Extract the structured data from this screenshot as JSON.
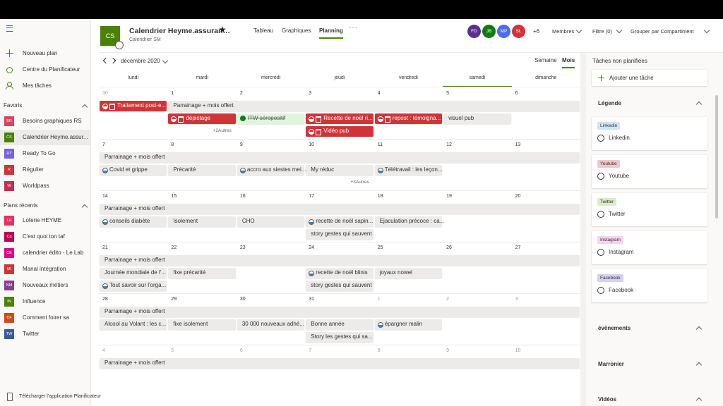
{
  "sidebar": {
    "new_plan": "Nouveau plan",
    "hub": "Centre du Planificateur",
    "my_tasks": "Mes tâches",
    "favorites_title": "Favoris",
    "favorites": [
      {
        "initials": "BR",
        "name": "Besoins graphiques RS",
        "color": "#e0405e"
      },
      {
        "initials": "CS",
        "name": "Calendrier Heyme.assur...",
        "color": "#498205",
        "selected": true
      },
      {
        "initials": "RT",
        "name": "Ready To Go",
        "color": "#7a63e0"
      },
      {
        "initials": "R",
        "name": "Régulier",
        "color": "#d13438"
      },
      {
        "initials": "W",
        "name": "Worldpass",
        "color": "#c4314b"
      }
    ],
    "recent_title": "Plans récents",
    "recent": [
      {
        "initials": "LH",
        "name": "Loterie HEYME",
        "color": "#e3325f"
      },
      {
        "initials": "Cq",
        "name": "C'est quoi ton taf",
        "color": "#c30052"
      },
      {
        "initials": "CÉ",
        "name": "calendrier édito - Le Lab",
        "color": "#e3008c"
      },
      {
        "initials": "MI",
        "name": "Manal intégration",
        "color": "#d13438"
      },
      {
        "initials": "NM",
        "name": "Nouveaux métiers",
        "color": "#8e3b8f"
      },
      {
        "initials": "IN",
        "name": "Influence",
        "color": "#498205"
      },
      {
        "initials": "CF",
        "name": "Comment foirer sa",
        "color": "#ca5010"
      },
      {
        "initials": "TW",
        "name": "Twitter",
        "color": "#3b5b9b"
      }
    ],
    "download": "Télécharger l'application Planificateur"
  },
  "header": {
    "initials": "CS",
    "color": "#498205",
    "title": "Calendrier Heyme.assuran…",
    "subtitle": "Calendrier SM",
    "tabs": [
      "Tableau",
      "Graphiques",
      "Planning"
    ],
    "active_tab": 2,
    "members": [
      {
        "initials": "FD",
        "color": "#5c2e91"
      },
      {
        "initials": "JB",
        "color": "#107c10"
      },
      {
        "initials": "MP",
        "color": "#4f6bed"
      },
      {
        "initials": "SL",
        "color": "#d13438"
      }
    ],
    "more_members": "+6",
    "members_label": "Membres",
    "filter": "Filtre (0)",
    "group": "Grouper par Compartiment"
  },
  "calendar": {
    "month": "décembre 2020",
    "views": [
      "Semaine",
      "Mois"
    ],
    "active_view": 1,
    "weekdays": [
      "lundi",
      "mardi",
      "mercredi",
      "jeudi",
      "vendredi",
      "samedi",
      "dimanche"
    ],
    "today": 5,
    "weeks": [
      {
        "days": [
          {
            "n": "30",
            "other": true
          },
          {
            "n": "1"
          },
          {
            "n": "2"
          },
          {
            "n": "3"
          },
          {
            "n": "4"
          },
          {
            "n": "5"
          },
          {
            "n": "6"
          }
        ],
        "lanes": [
          [
            {
              "label": "Traitement post-e...",
              "kind": "red"
            },
            {
              "label": "Parrainage + mois offert",
              "kind": "banner"
            },
            null,
            null,
            null,
            null,
            null
          ],
          [
            null,
            {
              "label": "dépistage",
              "kind": "red"
            },
            {
              "label": "ITW séropositif",
              "kind": "done"
            },
            {
              "label": "Recette de noël ri...",
              "kind": "red"
            },
            {
              "label": "repost : témoigna...",
              "kind": "red"
            },
            {
              "label": "visuel pub",
              "kind": "gray"
            },
            null
          ],
          [
            null,
            {
              "label": "+2Autres",
              "kind": "more"
            },
            null,
            {
              "label": "Vidéo pub",
              "kind": "red"
            },
            null,
            null,
            null
          ]
        ]
      },
      {
        "days": [
          {
            "n": "7"
          },
          {
            "n": "8"
          },
          {
            "n": "9"
          },
          {
            "n": "10"
          },
          {
            "n": "11"
          },
          {
            "n": "12"
          },
          {
            "n": "13"
          }
        ],
        "lanes": [
          [
            {
              "label": "Parrainage + mois offert",
              "kind": "banner"
            },
            null,
            null,
            null,
            null,
            null,
            null
          ],
          [
            {
              "label": "Covid et grippe",
              "kind": "progress"
            },
            {
              "label": "Précarité",
              "kind": "gray"
            },
            {
              "label": "accro aux siestes mei...",
              "kind": "progress"
            },
            {
              "label": "My réduc",
              "kind": "gray"
            },
            {
              "label": "Télétravail : les leçon...",
              "kind": "progress"
            },
            null,
            null
          ],
          [
            null,
            null,
            null,
            {
              "label": "+3Autres",
              "kind": "more"
            },
            null,
            null,
            null
          ]
        ]
      },
      {
        "days": [
          {
            "n": "14"
          },
          {
            "n": "15"
          },
          {
            "n": "16"
          },
          {
            "n": "17"
          },
          {
            "n": "18"
          },
          {
            "n": "19"
          },
          {
            "n": "20"
          }
        ],
        "lanes": [
          [
            {
              "label": "Parrainage + mois offert",
              "kind": "banner"
            },
            null,
            null,
            null,
            null,
            null,
            null
          ],
          [
            {
              "label": "conseils diabète",
              "kind": "progress"
            },
            {
              "label": "Isolement",
              "kind": "gray"
            },
            {
              "label": "CHO",
              "kind": "gray"
            },
            {
              "label": "recette de noël sapin...",
              "kind": "progress"
            },
            {
              "label": "Ejaculation précoce : ca...",
              "kind": "gray"
            },
            null,
            null
          ],
          [
            null,
            null,
            null,
            {
              "label": "story gestes qui sauvent",
              "kind": "gray"
            },
            null,
            null,
            null
          ]
        ]
      },
      {
        "days": [
          {
            "n": "21"
          },
          {
            "n": "22"
          },
          {
            "n": "23"
          },
          {
            "n": "24"
          },
          {
            "n": "25"
          },
          {
            "n": "26"
          },
          {
            "n": "27"
          }
        ],
        "lanes": [
          [
            {
              "label": "Parrainage + mois offert",
              "kind": "banner"
            },
            null,
            null,
            null,
            null,
            null,
            null
          ],
          [
            {
              "label": "Journée mondiale de l'...",
              "kind": "gray"
            },
            {
              "label": "fixe précarité",
              "kind": "gray"
            },
            null,
            {
              "label": "recette de noël blinis",
              "kind": "progress"
            },
            {
              "label": "joyaux nowel",
              "kind": "gray"
            },
            null,
            null
          ],
          [
            {
              "label": "Tout savoir sur l'orga...",
              "kind": "progress"
            },
            null,
            null,
            {
              "label": "story gestes qui sauvent",
              "kind": "gray"
            },
            null,
            null,
            null
          ]
        ]
      },
      {
        "days": [
          {
            "n": "28"
          },
          {
            "n": "29"
          },
          {
            "n": "30"
          },
          {
            "n": "31"
          },
          {
            "n": "1",
            "other": true
          },
          {
            "n": "2",
            "other": true
          },
          {
            "n": "3",
            "other": true
          }
        ],
        "lanes": [
          [
            {
              "label": "Parrainage + mois offert",
              "kind": "banner"
            },
            null,
            null,
            null,
            null,
            null,
            null
          ],
          [
            {
              "label": "Alcool au Volant : les c...",
              "kind": "gray"
            },
            {
              "label": "fixe isolement",
              "kind": "gray"
            },
            {
              "label": "30 000 nouveaux adhé...",
              "kind": "gray"
            },
            {
              "label": "Bonne année",
              "kind": "gray"
            },
            {
              "label": "épargner malin",
              "kind": "progress"
            },
            null,
            null
          ],
          [
            null,
            null,
            null,
            {
              "label": "Story les gestes qui sa...",
              "kind": "gray"
            },
            null,
            null,
            null
          ]
        ]
      },
      {
        "days": [
          {
            "n": "4",
            "other": true
          },
          {
            "n": "5",
            "other": true
          },
          {
            "n": "6",
            "other": true
          },
          {
            "n": "7",
            "other": true
          },
          {
            "n": "8",
            "other": true
          },
          {
            "n": "9",
            "other": true
          },
          {
            "n": "10",
            "other": true
          }
        ],
        "lanes": [
          [
            {
              "label": "Parrainage + mois offert",
              "kind": "banner"
            },
            null,
            null,
            null,
            null,
            null,
            null
          ]
        ]
      }
    ]
  },
  "panel": {
    "title": "Tâches non planifiées",
    "add": "Ajouter une tâche",
    "legend": "Légende",
    "labels": [
      {
        "tag": "Linkedin",
        "name": "Linkedin",
        "color": "#d0e4f5"
      },
      {
        "tag": "Youtube",
        "name": "Youtube",
        "color": "#f1c6c9"
      },
      {
        "tag": "Twitter",
        "name": "Twitter",
        "color": "#dcecc6"
      },
      {
        "tag": "Instagram",
        "name": "Instagram",
        "color": "#f6d3ee"
      },
      {
        "tag": "Facebook",
        "name": "Facebook",
        "color": "#d6cff0"
      }
    ],
    "sections": [
      "évènements",
      "Marronier",
      "Vidéos"
    ]
  }
}
